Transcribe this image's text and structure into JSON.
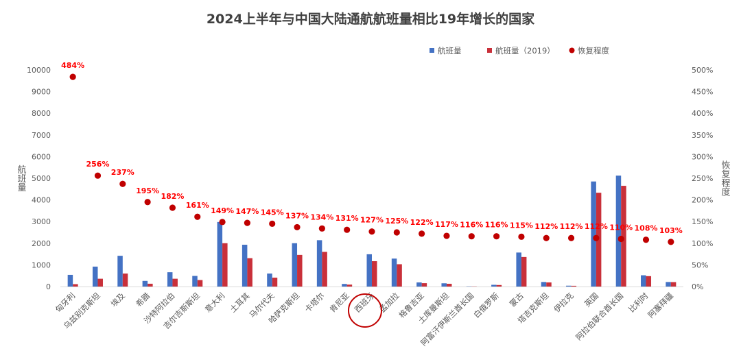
{
  "chart_data": {
    "type": "bar",
    "title": "2024上半年与中国大陆通航航班量相比19年增长的国家",
    "ylabel": "航班量",
    "y2label": "恢复程度",
    "ylim": [
      0,
      10000
    ],
    "y2lim": [
      0,
      500
    ],
    "yticks": [
      "0",
      "1000",
      "2000",
      "3000",
      "4000",
      "5000",
      "6000",
      "7000",
      "8000",
      "9000",
      "10000"
    ],
    "y2ticks": [
      "0%",
      "50%",
      "100%",
      "150%",
      "200%",
      "250%",
      "300%",
      "350%",
      "400%",
      "450%",
      "500%"
    ],
    "grid": false,
    "legend_position": "top-right",
    "categories": [
      "匈牙利",
      "乌兹别克斯坦",
      "埃及",
      "希腊",
      "沙特阿拉伯",
      "吉尔吉斯斯坦",
      "意大利",
      "土耳其",
      "马尔代夫",
      "哈萨克斯坦",
      "卡塔尔",
      "肯尼亚",
      "西班牙",
      "孟加拉",
      "格鲁吉亚",
      "土库曼斯坦",
      "阿富汗伊斯兰酋长国",
      "白俄罗斯",
      "蒙古",
      "塔吉克斯坦",
      "伊拉克",
      "英国",
      "阿拉伯联合酋长国",
      "比利时",
      "阿塞拜疆"
    ],
    "series": [
      {
        "name": "航班量",
        "color": "#4472c4",
        "values": [
          540,
          920,
          1420,
          260,
          660,
          490,
          2980,
          1930,
          600,
          2000,
          2140,
          120,
          1490,
          1290,
          190,
          150,
          10,
          80,
          1570,
          210,
          40,
          4850,
          5120,
          520,
          210
        ]
      },
      {
        "name": "航班量（2019）",
        "color": "#c9303a",
        "values": [
          110,
          360,
          600,
          130,
          360,
          300,
          2000,
          1310,
          410,
          1460,
          1600,
          90,
          1170,
          1030,
          155,
          128,
          8,
          70,
          1365,
          190,
          35,
          4330,
          4650,
          480,
          205
        ]
      },
      {
        "name": "恢复程度",
        "color": "#c00000",
        "type": "scatter",
        "values": [
          484,
          256,
          237,
          195,
          182,
          161,
          149,
          147,
          145,
          137,
          134,
          131,
          127,
          125,
          122,
          117,
          116,
          116,
          115,
          112,
          112,
          112,
          110,
          108,
          103
        ]
      }
    ],
    "data_labels": [
      "484%",
      "256%",
      "237%",
      "195%",
      "182%",
      "161%",
      "149%",
      "147%",
      "145%",
      "137%",
      "134%",
      "131%",
      "127%",
      "125%",
      "122%",
      "117%",
      "116%",
      "116%",
      "115%",
      "112%",
      "112%",
      "112%",
      "110%",
      "108%",
      "103%"
    ],
    "annotation": {
      "type": "circle",
      "target_category": "西班牙",
      "color": "#c00000"
    }
  }
}
